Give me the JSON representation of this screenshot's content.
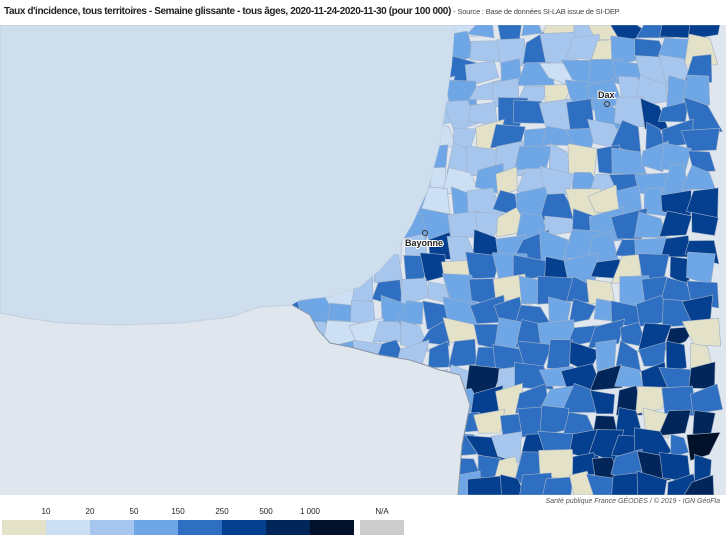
{
  "title": "Taux d'incidence, tous territoires - Semaine glissante - tous âges, 2020-11-24-2020-11-30 (pour 100 000)",
  "source": "- Source : Base de données SI-LAB issue de SI-DEP",
  "attribution": "Santé publique France GÉODES / © 2019 - IGN GéoFla",
  "cities": [
    {
      "name": "Dax"
    },
    {
      "name": "Bayonne"
    }
  ],
  "legend": {
    "thresholds": [
      "10",
      "20",
      "50",
      "150",
      "250",
      "500",
      "1 000"
    ],
    "colors": [
      "#e3e2c8",
      "#cddff2",
      "#a7c6ee",
      "#6fa6e6",
      "#2f6fc2",
      "#053f8f",
      "#03265a",
      "#01112a"
    ],
    "na_label": "N/A",
    "na_color": "#cccccc"
  },
  "colors": {
    "ocean": "#cedeec",
    "outside": "#dfe6ee",
    "border": "#a8b4c2"
  }
}
